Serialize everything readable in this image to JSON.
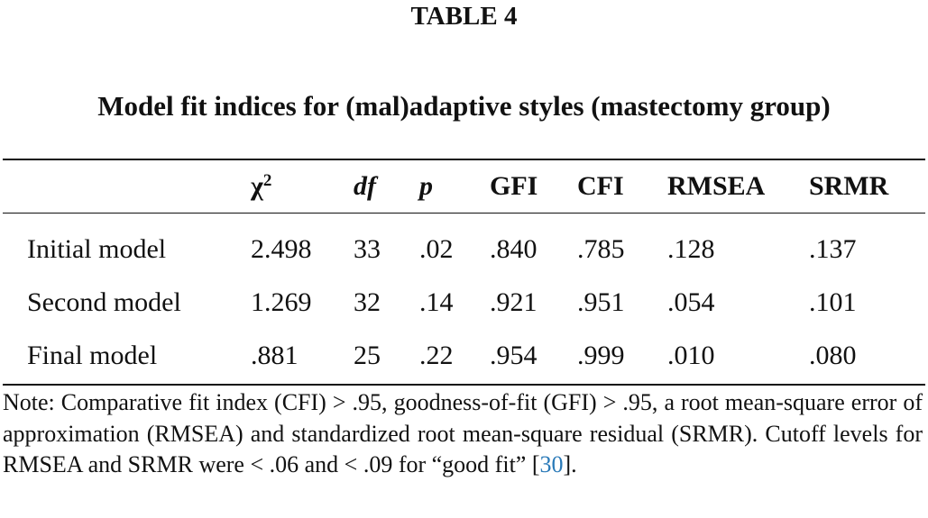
{
  "label": "TABLE 4",
  "title": "Model fit indices for (mal)adaptive styles (mastectomy group)",
  "table": {
    "columns": [
      {
        "base": "χ",
        "sup": "2"
      },
      "df",
      "p",
      "GFI",
      "CFI",
      "RMSEA",
      "SRMR"
    ],
    "rows": [
      [
        "Initial model",
        "2.498",
        "33",
        ".02",
        ".840",
        ".785",
        ".128",
        ".137"
      ],
      [
        "Second model",
        "1.269",
        "32",
        ".14",
        ".921",
        ".951",
        ".054",
        ".101"
      ],
      [
        "Final model",
        ".881",
        "25",
        ".22",
        ".954",
        ".999",
        ".010",
        ".080"
      ]
    ]
  },
  "note": {
    "text": "Note: Comparative fit index (CFI) > .95, goodness-of-fit (GFI) > .95, a root mean-square error of approximation (RMSEA) and standardized root mean-square residual (SRMR). Cutoff levels for RMSEA and SRMR were < .06 and < .09 for “good fit” [",
    "ref": "30",
    "end": "]."
  }
}
